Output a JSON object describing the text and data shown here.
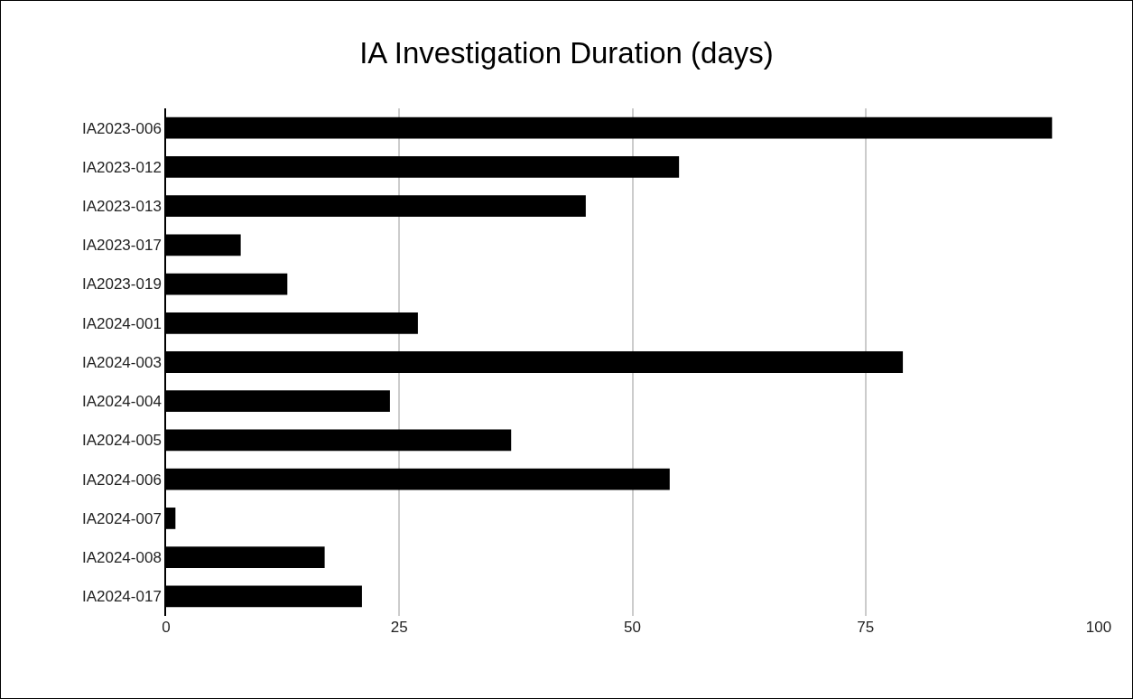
{
  "chart_data": {
    "type": "bar",
    "title": "IA Investigation Duration (days)",
    "orientation": "horizontal",
    "categories": [
      "IA2023-006",
      "IA2023-012",
      "IA2023-013",
      "IA2023-017",
      "IA2023-019",
      "IA2024-001",
      "IA2024-003",
      "IA2024-004",
      "IA2024-005",
      "IA2024-006",
      "IA2024-007",
      "IA2024-008",
      "IA2024-017"
    ],
    "values": [
      95,
      55,
      45,
      8,
      13,
      27,
      79,
      24,
      37,
      54,
      1,
      17,
      21
    ],
    "color": "#000000",
    "xlim": [
      0,
      100
    ],
    "xticks": [
      0,
      25,
      50,
      75,
      100
    ],
    "grid": "x"
  }
}
